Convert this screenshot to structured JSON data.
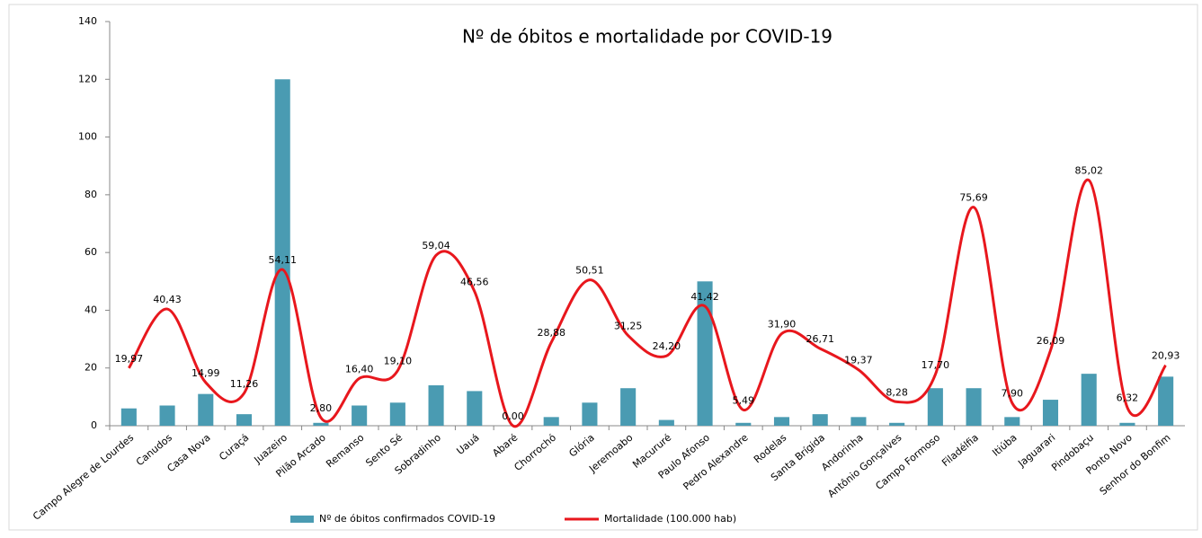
{
  "chart_data": {
    "type": "bar_line",
    "title": "Nº de óbitos e mortalidade por COVID-19",
    "categories": [
      "Campo Alegre de Lourdes",
      "Canudos",
      "Casa Nova",
      "Curaçá",
      "Juazeiro",
      "Pilão Arcado",
      "Remanso",
      "Sento Sé",
      "Sobradinho",
      "Uauá",
      "Abaré",
      "Chorrochó",
      "Glória",
      "Jeremoabo",
      "Macururé",
      "Paulo Afonso",
      "Pedro Alexandre",
      "Rodelas",
      "Santa Brígida",
      "Andorinha",
      "Antônio Gonçalves",
      "Campo Formoso",
      "Filadélfia",
      "Itiúba",
      "Jaguarari",
      "Pindobaçu",
      "Ponto Novo",
      "Senhor do Bonfim"
    ],
    "series": [
      {
        "name": "Nº de óbitos confirmados COVID-19",
        "type": "bar",
        "color": "#4a9bb2",
        "values": [
          6,
          7,
          11,
          4,
          120,
          1,
          7,
          8,
          14,
          12,
          0,
          3,
          8,
          13,
          2,
          50,
          1,
          3,
          4,
          3,
          1,
          13,
          13,
          3,
          9,
          18,
          1,
          17
        ]
      },
      {
        "name": "Mortalidade (100.000 hab)",
        "type": "line",
        "color": "#e8171d",
        "values": [
          19.97,
          40.43,
          14.99,
          11.26,
          54.11,
          2.8,
          16.4,
          19.1,
          59.04,
          46.56,
          0.0,
          28.88,
          50.51,
          31.25,
          24.2,
          41.42,
          5.49,
          31.9,
          26.71,
          19.37,
          8.28,
          17.7,
          75.69,
          7.9,
          26.09,
          85.02,
          6.32,
          20.93
        ],
        "value_labels": [
          "19,97",
          "40,43",
          "14,99",
          "11,26",
          "54,11",
          "2,80",
          "16,40",
          "19,10",
          "59,04",
          "46,56",
          "0,00",
          "28,88",
          "50,51",
          "31,25",
          "24,20",
          "41,42",
          "5,49",
          "31,90",
          "26,71",
          "19,37",
          "8,28",
          "17,70",
          "75,69",
          "7,90",
          "26,09",
          "85,02",
          "6,32",
          "20,93"
        ]
      }
    ],
    "ylim": [
      0,
      140
    ],
    "yticks": [
      0,
      20,
      40,
      60,
      80,
      100,
      120,
      140
    ],
    "legend": "bottom"
  }
}
